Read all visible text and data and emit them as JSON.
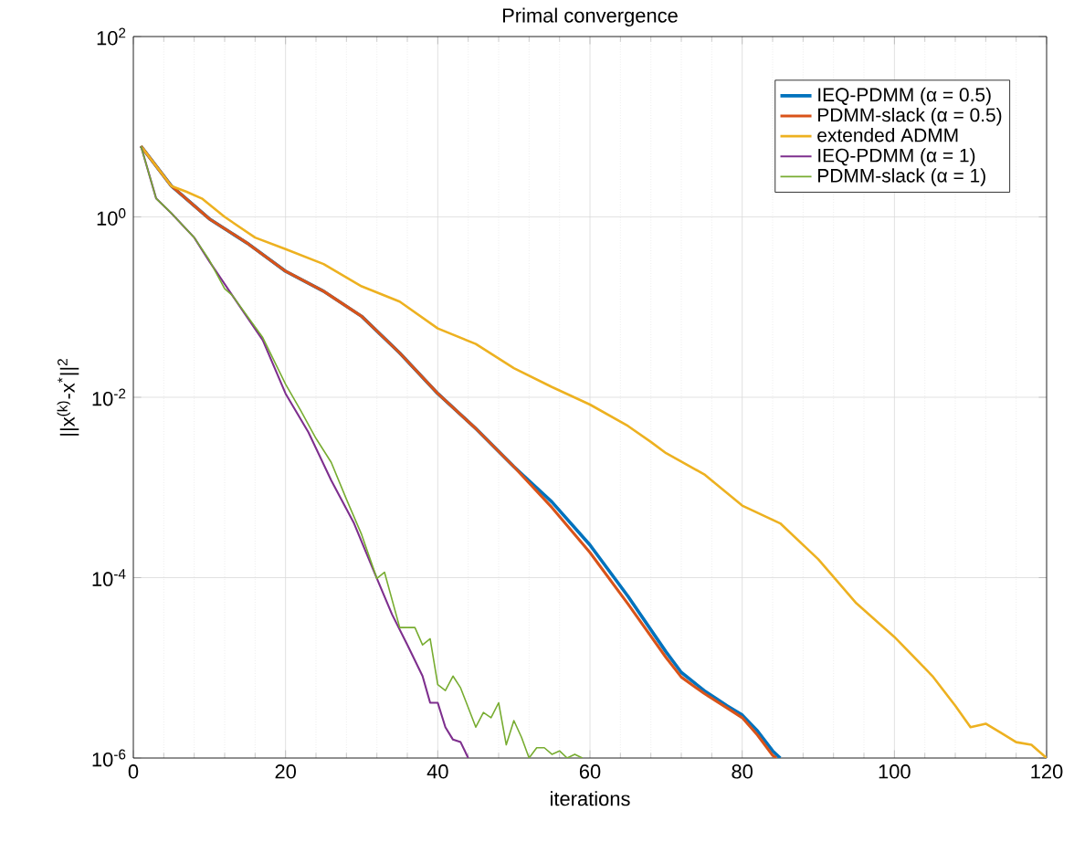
{
  "chart_data": {
    "type": "line",
    "title": "Primal convergence",
    "xlabel": "iterations",
    "ylabel": "||x$^{(k)}$-x$^{*}$||$^{2}$",
    "xlim": [
      0,
      120
    ],
    "xticks": [
      0,
      20,
      40,
      60,
      80,
      100,
      120
    ],
    "ylim": [
      1e-06,
      100
    ],
    "yticks": [
      {
        "value": 1e-06,
        "label": "10$^{-6}$"
      },
      {
        "value": 0.0001,
        "label": "10$^{-4}$"
      },
      {
        "value": 0.01,
        "label": "10$^{-2}$"
      },
      {
        "value": 1,
        "label": "10$^{0}$"
      },
      {
        "value": 100,
        "label": "10$^{2}$"
      }
    ],
    "log": "y",
    "grid": true,
    "legend": "top right",
    "series": [
      {
        "name": "IEQ-PDMM (α = 0.5)",
        "color": "#0072bd",
        "x": [
          1,
          5,
          10,
          15,
          20,
          25,
          30,
          35,
          40,
          45,
          50,
          55,
          60,
          65,
          70,
          72,
          75,
          78,
          80,
          82,
          84,
          85
        ],
        "values": [
          6.1,
          2.2,
          0.95,
          0.51,
          0.25,
          0.15,
          0.079,
          0.031,
          0.011,
          0.0045,
          0.0017,
          0.00069,
          0.00023,
          6.2e-05,
          1.5e-05,
          8.9e-06,
          5.6e-06,
          3.8e-06,
          3e-06,
          2e-06,
          1.2e-06,
          1e-06
        ]
      },
      {
        "name": "PDMM-slack (α = 0.5)",
        "color": "#d95319",
        "x": [
          1,
          5,
          10,
          15,
          20,
          25,
          30,
          35,
          40,
          45,
          50,
          55,
          60,
          65,
          70,
          72,
          75,
          78,
          80,
          82,
          84,
          84.5
        ],
        "values": [
          6.1,
          2.2,
          0.95,
          0.51,
          0.25,
          0.15,
          0.079,
          0.031,
          0.011,
          0.0045,
          0.0017,
          0.0006,
          0.00019,
          5.1e-05,
          1.3e-05,
          7.9e-06,
          5.2e-06,
          3.6e-06,
          2.8e-06,
          1.8e-06,
          1.07e-06,
          1e-06
        ]
      },
      {
        "name": "extended ADMM",
        "color": "#edb120",
        "x": [
          1,
          5,
          7,
          9,
          12,
          16,
          20,
          25,
          30,
          35,
          40,
          45,
          50,
          55,
          60,
          65,
          68,
          70,
          75,
          80,
          85,
          90,
          95,
          100,
          105,
          108,
          110,
          112,
          114,
          116,
          118,
          120
        ],
        "values": [
          6.1,
          2.2,
          1.9,
          1.6,
          1.0,
          0.59,
          0.44,
          0.3,
          0.17,
          0.115,
          0.058,
          0.039,
          0.021,
          0.013,
          0.0083,
          0.0048,
          0.0032,
          0.0024,
          0.0014,
          0.00063,
          0.0004,
          0.00016,
          5.2e-05,
          2.2e-05,
          8.1e-06,
          3.8e-06,
          2.2e-06,
          2.4e-06,
          1.9e-06,
          1.5e-06,
          1.4e-06,
          1e-06
        ]
      },
      {
        "name": "IEQ-PDMM (α = 1)",
        "color": "#7e2f8e",
        "x": [
          1,
          3,
          5,
          8,
          10,
          13,
          17,
          20,
          23,
          26,
          29,
          32,
          34,
          36,
          38,
          39,
          40,
          41,
          42,
          43,
          44
        ],
        "values": [
          6.1,
          1.6,
          1.1,
          0.59,
          0.32,
          0.135,
          0.043,
          0.011,
          0.0041,
          0.0012,
          0.0004,
          9.8e-05,
          3.9e-05,
          1.8e-05,
          8.1e-06,
          4.1e-06,
          4.1e-06,
          2.2e-06,
          1.6e-06,
          1.5e-06,
          1e-06
        ]
      },
      {
        "name": "PDMM-slack (α = 1)",
        "color": "#77ac30",
        "x": [
          1,
          3,
          5,
          8,
          10,
          12,
          13,
          17,
          20,
          22,
          24,
          26,
          28,
          30,
          32,
          33,
          35,
          37,
          38,
          39,
          40,
          41,
          42,
          43,
          45,
          46,
          47,
          48,
          49,
          50,
          51,
          52,
          53,
          54,
          55,
          56,
          57,
          58,
          59
        ],
        "values": [
          6.1,
          1.6,
          1.1,
          0.59,
          0.33,
          0.16,
          0.135,
          0.046,
          0.014,
          0.0071,
          0.0035,
          0.0019,
          0.00074,
          0.0003,
          9.8e-05,
          0.000115,
          2.8e-05,
          2.8e-05,
          1.8e-05,
          2.1e-05,
          6.5e-06,
          5.6e-06,
          8.1e-06,
          6e-06,
          2.2e-06,
          3.2e-06,
          2.8e-06,
          4.1e-06,
          1.4e-06,
          2.6e-06,
          1.7e-06,
          1e-06,
          1.3e-06,
          1.3e-06,
          1.1e-06,
          1.2e-06,
          1e-06,
          1.1e-06,
          1e-06
        ]
      }
    ]
  }
}
